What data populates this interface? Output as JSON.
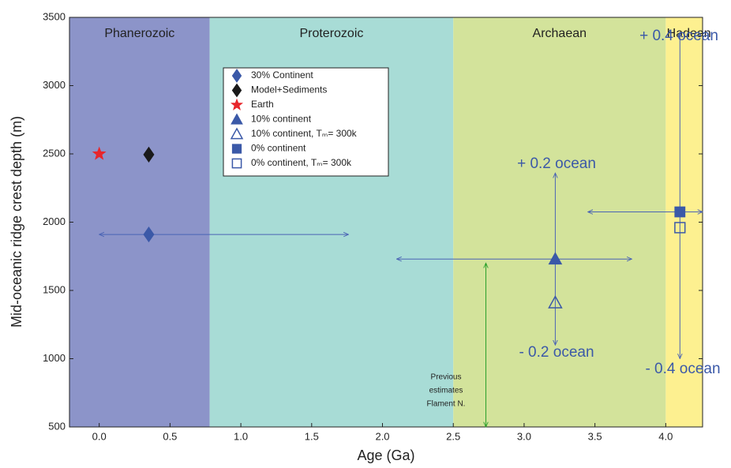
{
  "chart_data": {
    "type": "scatter",
    "xlabel": "Age (Ga)",
    "ylabel": "Mid-oceanic ridge crest depth (m)",
    "xlim": [
      -0.21,
      4.26
    ],
    "ylim": [
      500,
      3500
    ],
    "xticks": [
      {
        "value": 0,
        "label": "0.0"
      },
      0.5,
      {
        "value": 1,
        "label": "1.0"
      },
      1.5,
      {
        "value": 2,
        "label": "2.0"
      },
      2.5,
      {
        "value": 3,
        "label": "3.0"
      },
      3.5,
      {
        "value": 4,
        "label": "4.0"
      }
    ],
    "yticks": [
      500,
      1000,
      1500,
      2000,
      2500,
      3000,
      3500
    ],
    "eras": {
      "names": [
        "Phanerozoic",
        "Proterozoic",
        "Archaean",
        "Hadean"
      ],
      "bounds": [
        0.78,
        2.5,
        4.0
      ],
      "colors": [
        "#8c94c9",
        "#a8dcd6",
        "#d3e39b",
        "#fdf090"
      ]
    },
    "series": [
      {
        "name": "30% Continent",
        "color": "#3b59a8",
        "marker": "diamond",
        "filled": true,
        "x": [
          0.35
        ],
        "values": [
          1910
        ],
        "x_range": [
          0,
          1.76
        ]
      },
      {
        "name": "Model+Sediments",
        "color": "#1a1a1a",
        "marker": "diamond",
        "filled": true,
        "x": [
          0.35
        ],
        "values": [
          2495
        ]
      },
      {
        "name": "Earth",
        "color": "#e8262b",
        "marker": "star",
        "filled": true,
        "x": [
          0
        ],
        "values": [
          2500
        ]
      },
      {
        "name": "10% continent",
        "color": "#3b59a8",
        "marker": "triangle",
        "filled": true,
        "x": [
          3.22
        ],
        "values": [
          1730
        ],
        "x_range": [
          2.1,
          3.76
        ],
        "y_range": [
          1100,
          2360
        ]
      },
      {
        "name": "10% continent, Tₘ= 300k",
        "color": "#3b59a8",
        "marker": "triangle",
        "filled": false,
        "x": [
          3.22
        ],
        "values": [
          1410
        ]
      },
      {
        "name": "0% continent",
        "color": "#3b59a8",
        "marker": "square",
        "filled": true,
        "x": [
          4.1
        ],
        "values": [
          2075
        ],
        "x_range": [
          3.45,
          4.26
        ],
        "y_range": [
          1000,
          3390
        ]
      },
      {
        "name": "0% continent, Tₘ= 300k",
        "color": "#3b59a8",
        "marker": "square",
        "filled": false,
        "x": [
          4.1
        ],
        "values": [
          1960
        ]
      }
    ],
    "annotations": [
      "+ 0.4 ocean",
      "+ 0.2 ocean",
      "- 0.2 ocean",
      "- 0.4 ocean"
    ],
    "reference": {
      "label": [
        "Previous",
        "estimates",
        "Flament N."
      ],
      "color": "#2aa02a",
      "x": 2.73,
      "y_range": [
        500,
        1700
      ]
    }
  }
}
